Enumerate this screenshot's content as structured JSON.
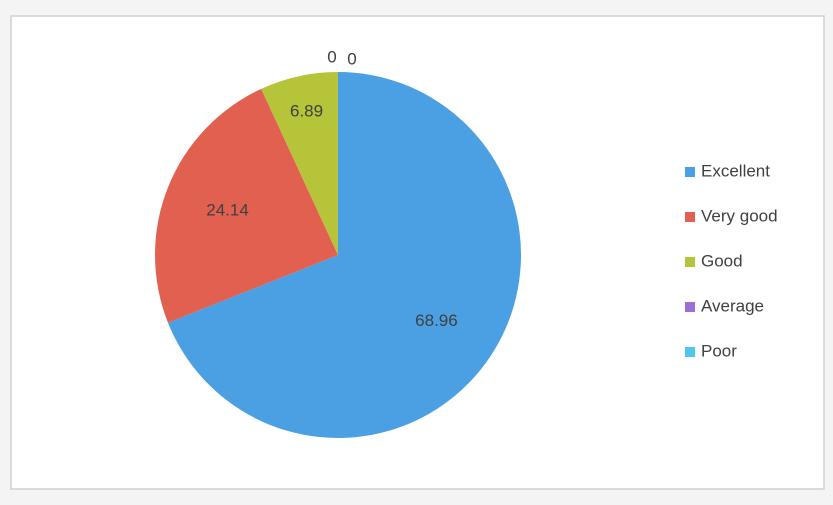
{
  "chart_data": {
    "type": "pie",
    "categories": [
      "Excellent",
      "Very good",
      "Good",
      "Average",
      "Poor"
    ],
    "values": [
      68.96,
      24.14,
      6.89,
      0,
      0
    ],
    "colors": [
      "#4b9fe3",
      "#e2604f",
      "#b6c43a",
      "#9b6fd6",
      "#4fc7ea"
    ],
    "legend": "right"
  }
}
